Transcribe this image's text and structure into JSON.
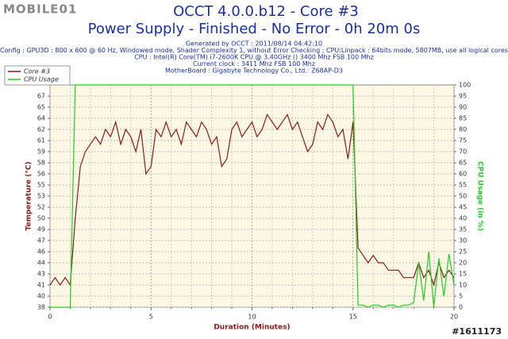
{
  "watermark": "MOBILE01",
  "footer_id": "#1611173",
  "chart_data": {
    "type": "line",
    "title": "OCCT 4.0.0.b12 - Core #3",
    "subtitle": "Power Supply - Finished - No Error - 0h 20m 0s",
    "info_lines": [
      "Generated by OCCT : 2011/08/14 04:42:10",
      "Config : GPU3D : 800 x 600 @ 60 Hz, Windowed mode, Shader Complexity 1, without Error Checking ; CPU:Linpack : 64bits mode, 5807MB, use all logical cores",
      "CPU : Intel(R) Core(TM) i7-2600K CPU @ 3.40GHz () 3400 Mhz FSB 100 Mhz",
      "Current clock : 3411 Mhz FSB 100 Mhz",
      "MotherBoard : Gigabyte Technology Co., Ltd.: Z68AP-D3"
    ],
    "xlabel": "Duration (Minutes)",
    "ylabel": "Temperature (°C)",
    "y2label": "CPU Usage (in %)",
    "xlim": [
      0,
      20
    ],
    "xticks": [
      0,
      5,
      10,
      15,
      20
    ],
    "xminorticks": [
      1,
      2,
      3,
      4,
      6,
      7,
      8,
      9,
      11,
      12,
      13,
      14,
      16,
      17,
      18,
      19
    ],
    "ylim": [
      38,
      68
    ],
    "yticks": [
      38,
      {
        "value": 39.5,
        "label": "40"
      },
      41,
      {
        "value": 42.5,
        "label": "43"
      },
      44,
      {
        "value": 45.5,
        "label": "46"
      },
      47,
      {
        "value": 48.5,
        "label": "49"
      },
      50,
      {
        "value": 51.5,
        "label": "52"
      },
      53,
      {
        "value": 54.5,
        "label": "55"
      },
      56,
      {
        "value": 57.5,
        "label": "58"
      },
      59,
      {
        "value": 60.5,
        "label": "61"
      },
      62,
      {
        "value": 63.5,
        "label": "64"
      },
      65,
      {
        "value": 66.5,
        "label": "67"
      }
    ],
    "y2lim": [
      0,
      100
    ],
    "y2ticks": [
      0,
      5,
      10,
      15,
      20,
      25,
      30,
      35,
      40,
      45,
      50,
      55,
      60,
      65,
      70,
      75,
      80,
      85,
      90,
      95,
      100
    ],
    "grid": true,
    "legend": "top-left",
    "x": [
      0,
      0.25,
      0.5,
      0.75,
      1,
      1.25,
      1.5,
      1.75,
      2,
      2.25,
      2.5,
      2.75,
      3,
      3.25,
      3.5,
      3.75,
      4,
      4.25,
      4.5,
      4.75,
      5,
      5.25,
      5.5,
      5.75,
      6,
      6.25,
      6.5,
      6.75,
      7,
      7.25,
      7.5,
      7.75,
      8,
      8.25,
      8.5,
      8.75,
      9,
      9.25,
      9.5,
      9.75,
      10,
      10.25,
      10.5,
      10.75,
      11,
      11.25,
      11.5,
      11.75,
      12,
      12.25,
      12.5,
      12.75,
      13,
      13.25,
      13.5,
      13.75,
      14,
      14.25,
      14.5,
      14.75,
      15,
      15.25,
      15.5,
      15.75,
      16,
      16.25,
      16.5,
      16.75,
      17,
      17.25,
      17.5,
      17.75,
      18,
      18.25,
      18.5,
      18.75,
      19,
      19.25,
      19.5,
      19.75,
      20
    ],
    "series": [
      {
        "name": "Core #3",
        "color": "#8b1a1a",
        "values": [
          41,
          42,
          41,
          42,
          41,
          50,
          57,
          59,
          60,
          61,
          60,
          62,
          61,
          63,
          60,
          62,
          61,
          59,
          62,
          56,
          57,
          62,
          61,
          63,
          61,
          62,
          60,
          63,
          62,
          61,
          63,
          62,
          60,
          61,
          57,
          58,
          62,
          63,
          61,
          62,
          63,
          61,
          62,
          64,
          63,
          62,
          63,
          64,
          62,
          63,
          61,
          59,
          60,
          63,
          62,
          64,
          63,
          61,
          62,
          58,
          63,
          46,
          45,
          44,
          45,
          44,
          44,
          43,
          43,
          43,
          42,
          42,
          42,
          44,
          42,
          43,
          41,
          44,
          42,
          43,
          42
        ]
      },
      {
        "name": "CPU Usage",
        "color": "#22cc22",
        "axis": "y2",
        "values": [
          0,
          0,
          0,
          0,
          0,
          100,
          100,
          100,
          100,
          100,
          100,
          100,
          100,
          100,
          100,
          100,
          100,
          100,
          100,
          100,
          100,
          100,
          100,
          100,
          100,
          100,
          100,
          100,
          100,
          100,
          100,
          100,
          100,
          100,
          100,
          100,
          100,
          100,
          100,
          100,
          100,
          100,
          100,
          100,
          100,
          100,
          100,
          100,
          100,
          100,
          100,
          100,
          100,
          100,
          100,
          100,
          100,
          100,
          100,
          100,
          100,
          1,
          1,
          0,
          1,
          1,
          0,
          1,
          1,
          0,
          1,
          1,
          2,
          20,
          3,
          25,
          0,
          22,
          5,
          24,
          10
        ]
      }
    ]
  }
}
